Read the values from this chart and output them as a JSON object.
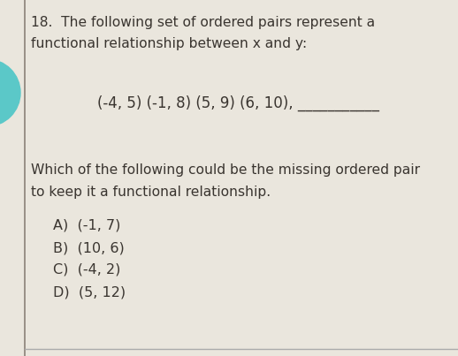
{
  "question_number": "18.",
  "title_line1": "The following set of ordered pairs represent a",
  "title_line2": "functional relationship between x and y:",
  "ordered_pairs": "(-4, 5) (-1, 8) (5, 9) (6, 10), ___________",
  "question_line1": "Which of the following could be the missing ordered pair",
  "question_line2": "to keep it a functional relationship.",
  "choices": [
    "A)  (-1, 7)",
    "B)  (10, 6)",
    "C)  (-4, 2)",
    "D)  (5, 12)"
  ],
  "bg_color": "#eae6dd",
  "text_color": "#3a3530",
  "left_line_color": "#8a8078",
  "teal_circle_color": "#5bc8c8",
  "font_size_title": 11.2,
  "font_size_pairs": 12.0,
  "font_size_question": 11.2,
  "font_size_choices": 11.5,
  "bottom_line_color": "#aaaaaa"
}
